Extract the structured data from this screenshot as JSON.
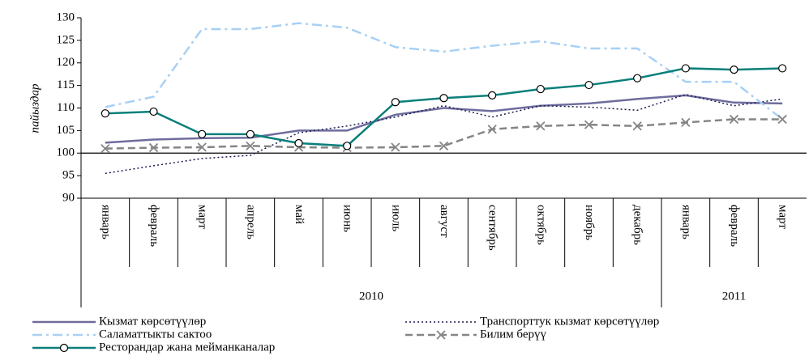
{
  "chart_data": {
    "type": "line",
    "ylabel": "пайыздар",
    "categories": [
      "январь",
      "февраль",
      "март",
      "апрель",
      "май",
      "июнь",
      "июль",
      "август",
      "сентябрь",
      "октябрь",
      "ноябрь",
      "декабрь",
      "январь",
      "февраль",
      "март"
    ],
    "year_groups": [
      {
        "label": "2010",
        "span": 12
      },
      {
        "label": "2011",
        "span": 3
      }
    ],
    "ylim": [
      90,
      130
    ],
    "yticks": [
      90,
      95,
      100,
      105,
      110,
      115,
      120,
      125,
      130
    ],
    "reference_line": 100,
    "series": [
      {
        "name": "Кызмат көрсөтүүлөр",
        "color": "#6f6c9e",
        "style": "solid",
        "marker": "none",
        "values": [
          102.3,
          103,
          103.3,
          103.4,
          105,
          105,
          108.5,
          110,
          109.3,
          110.5,
          111,
          112,
          112.8,
          111.2,
          111
        ]
      },
      {
        "name": "Транспорттук кызмат көрсөтүүлөр",
        "color": "#1a1a4e",
        "style": "dotted",
        "marker": "none",
        "values": [
          95.5,
          97.2,
          98.8,
          99.5,
          104.5,
          106,
          108,
          110.5,
          108,
          110.5,
          110.2,
          109.5,
          113,
          110.5,
          112
        ]
      },
      {
        "name": "Саламаттыкты сактоо",
        "color": "#a8d0f5",
        "style": "dashdot",
        "marker": "none",
        "values": [
          110.2,
          112.5,
          127.5,
          127.5,
          128.8,
          127.8,
          123.5,
          122.5,
          123.8,
          124.8,
          123.2,
          123.2,
          115.8,
          115.8,
          107.5
        ]
      },
      {
        "name": "Билим берүү",
        "color": "#858585",
        "style": "dashed",
        "marker": "x",
        "values": [
          101,
          101.2,
          101.3,
          101.6,
          101.3,
          101.2,
          101.3,
          101.6,
          105.3,
          106,
          106.3,
          106,
          106.8,
          107.5,
          107.5
        ]
      },
      {
        "name": "Ресторандар жана мейманканалар",
        "color": "#0a7f7a",
        "style": "solid",
        "marker": "circle",
        "values": [
          108.8,
          109.2,
          104.2,
          104.2,
          102.2,
          101.6,
          111.3,
          112.2,
          112.8,
          114.2,
          115.1,
          116.6,
          118.8,
          118.5,
          118.8
        ]
      }
    ]
  }
}
